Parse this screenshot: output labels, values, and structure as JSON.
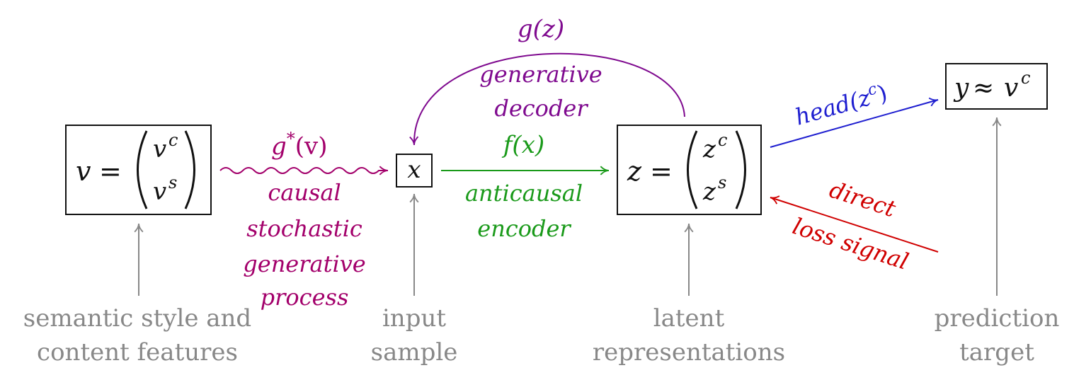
{
  "colors": {
    "causal": "#a3006b",
    "decoder": "#7f0a8f",
    "encoder": "#1a9a1a",
    "head": "#1f1fd0",
    "loss": "#d00000",
    "pointer": "#888888",
    "ink": "#111111"
  },
  "nodes": {
    "v": {
      "lhs": "v",
      "eq": "=",
      "top": "v",
      "top_sup": "c",
      "bottom": "v",
      "bottom_sup": "s"
    },
    "x": {
      "symbol": "x"
    },
    "z": {
      "lhs": "z",
      "eq": "=",
      "top": "z",
      "top_sup": "c",
      "bottom": "z",
      "bottom_sup": "s"
    },
    "y": {
      "lhs": "y",
      "approx": "≈",
      "rhs": "v",
      "rhs_sup": "c"
    }
  },
  "edges": {
    "causal": {
      "fn": "g",
      "fn_sup": "*",
      "arg": "(v)",
      "lines": [
        "causal",
        "stochastic",
        "generative",
        "process"
      ]
    },
    "encoder": {
      "fn": "f(x)",
      "lines": [
        "anticausal",
        "encoder"
      ]
    },
    "decoder": {
      "fn": "g(z)",
      "lines": [
        "generative",
        "decoder"
      ]
    },
    "head": {
      "fn": "head(z",
      "fn_sup": "c",
      "fn_close": ")"
    },
    "loss": {
      "lines": [
        "direct",
        "loss signal"
      ]
    }
  },
  "captions": {
    "v": [
      "semantic style and",
      "content features"
    ],
    "x": [
      "input",
      "sample"
    ],
    "z": [
      "latent",
      "representations"
    ],
    "y": [
      "prediction",
      "target"
    ]
  }
}
